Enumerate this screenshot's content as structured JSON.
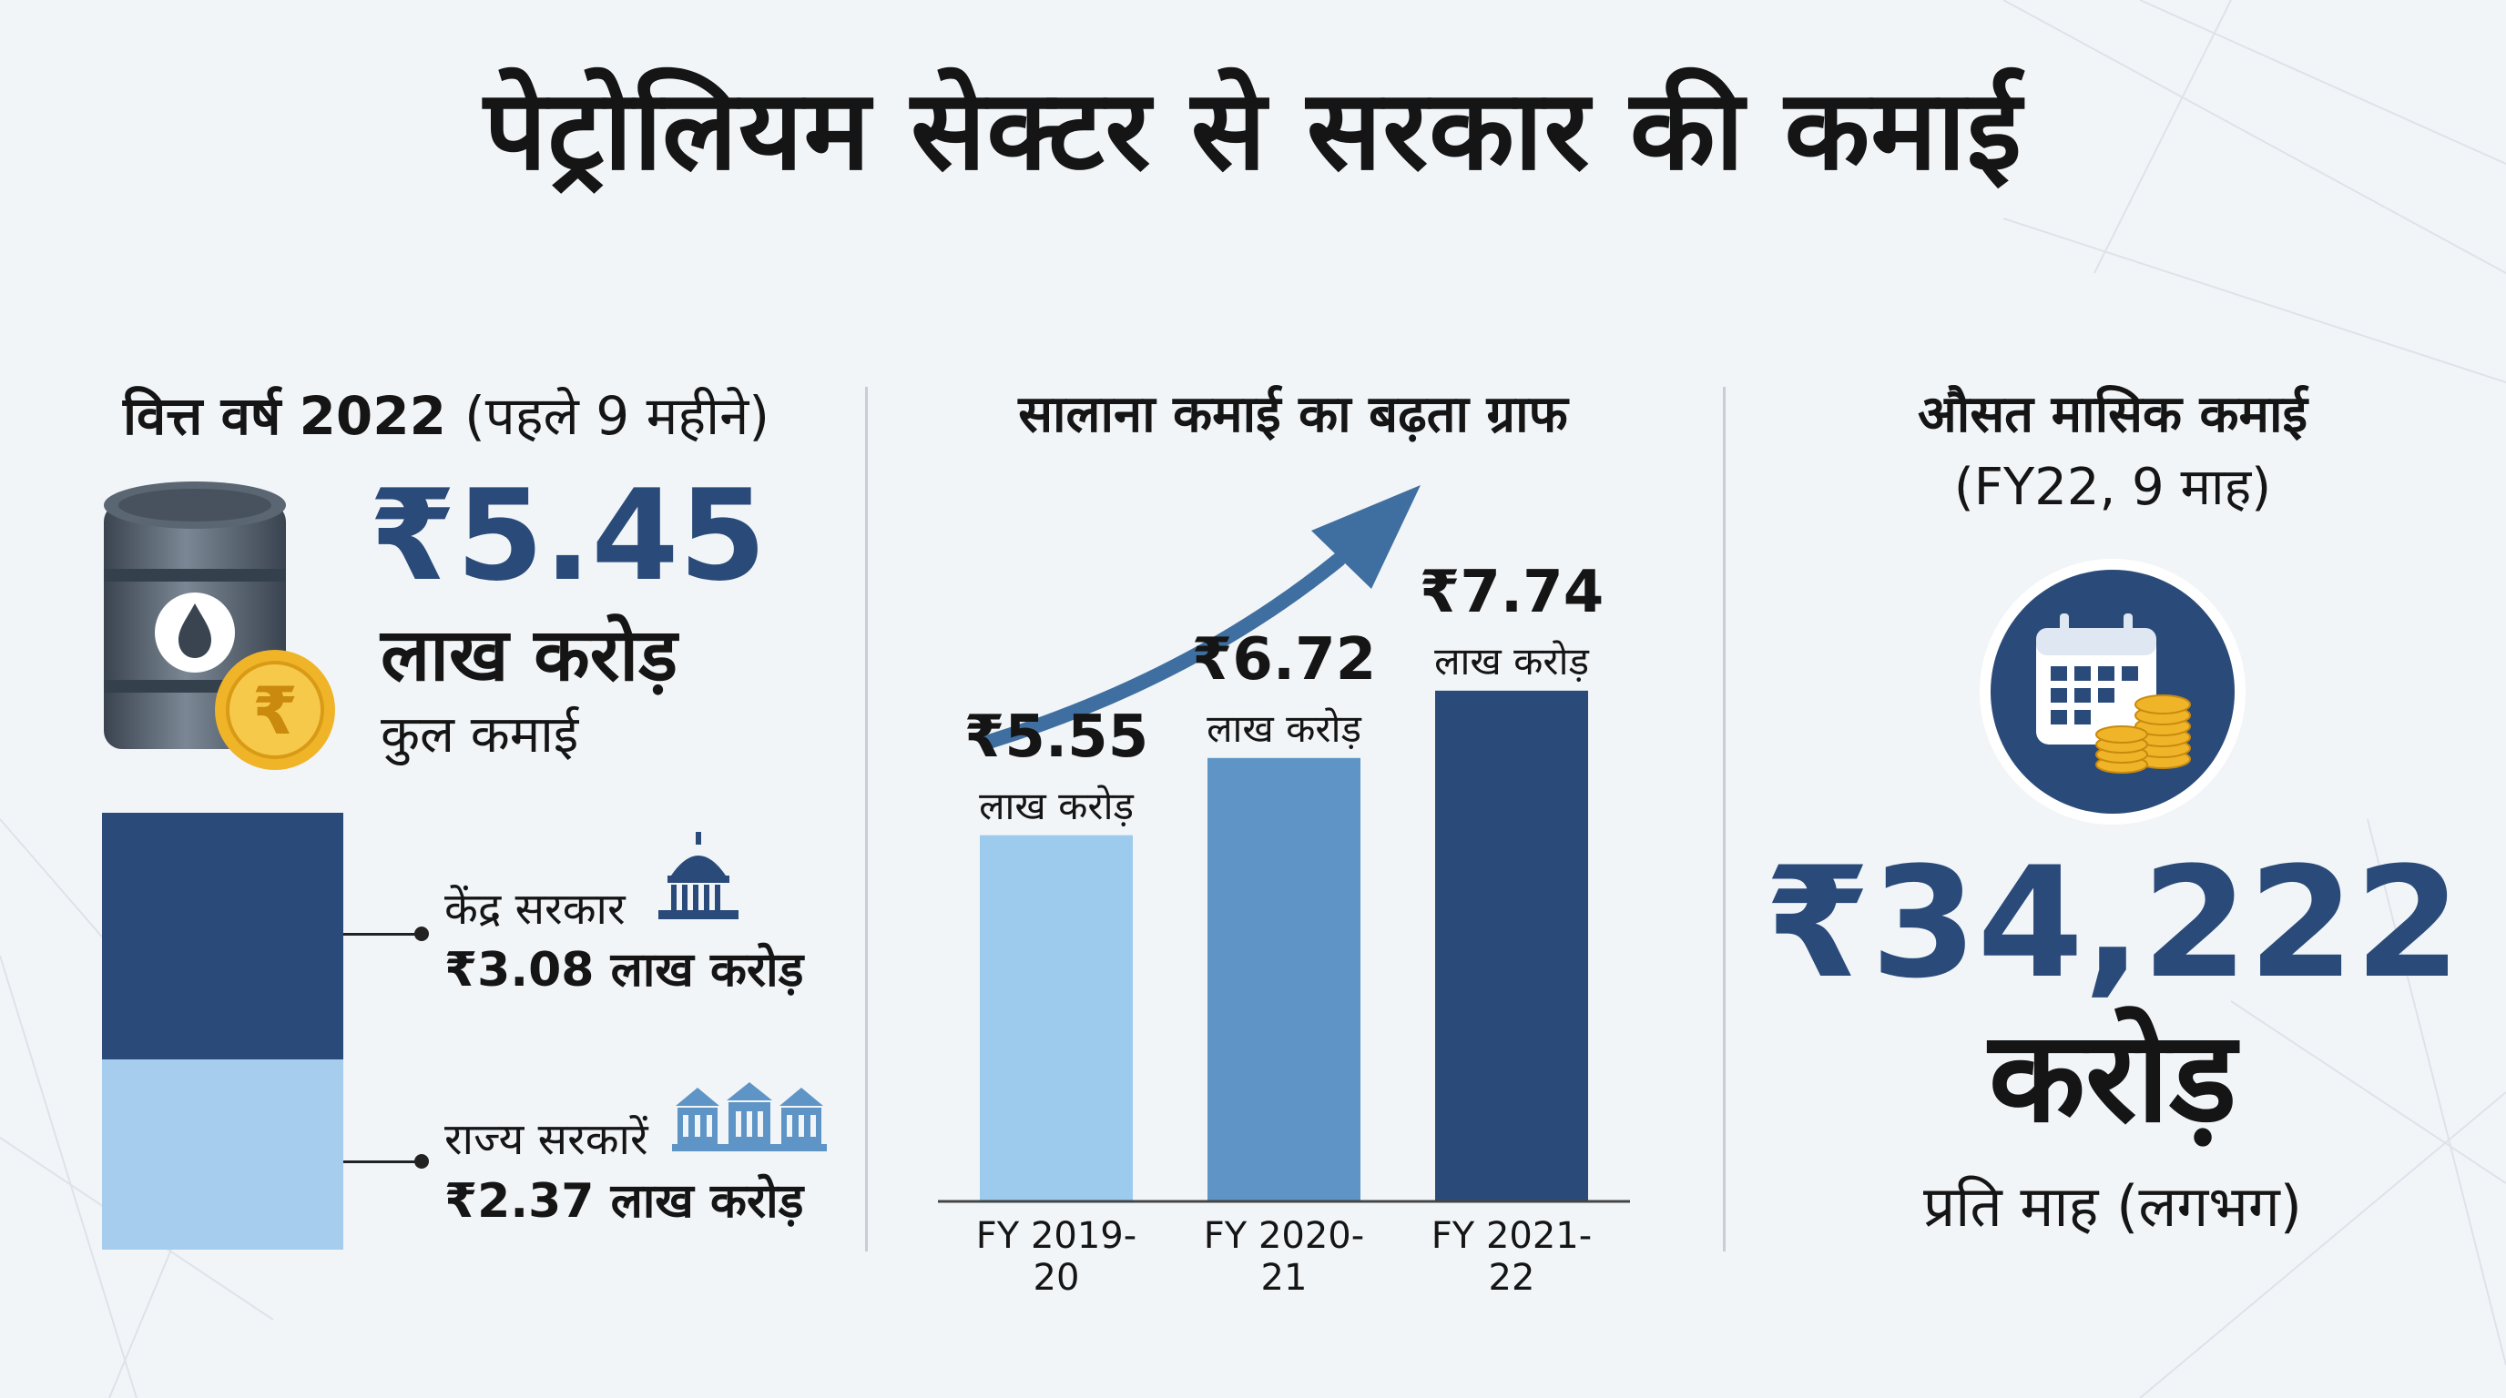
{
  "title": "पेट्रोलियम सेक्टर से सरकार की कमाई",
  "left": {
    "heading_bold": "वित्त वर्ष 2022",
    "heading_light": "(पहले 9 महीने)",
    "total_value": "₹5.45",
    "total_unit": "लाख करोड़",
    "total_caption": "कुल कमाई",
    "barrel_icon": "oil-barrel-icon",
    "coin_icon": "rupee-coin-icon",
    "coin_symbol": "₹",
    "split": [
      {
        "name": "केंद्र सरकार",
        "value": "₹3.08 लाख करोड़",
        "amount": 3.08,
        "color": "#2a4b7a",
        "icon": "parliament-icon"
      },
      {
        "name": "राज्य सरकारें",
        "value": "₹2.37 लाख करोड़",
        "amount": 2.37,
        "color": "#a6cdee",
        "icon": "state-buildings-icon"
      }
    ]
  },
  "middle": {
    "heading": "सालाना कमाई का बढ़ता ग्राफ",
    "arrow_icon": "trend-arrow-icon"
  },
  "chart_data": {
    "type": "bar",
    "title": "सालाना कमाई का बढ़ता ग्राफ",
    "categories": [
      "FY 2019-20",
      "FY 2020-21",
      "FY 2021-22"
    ],
    "values": [
      5.55,
      6.72,
      7.74
    ],
    "value_labels": [
      "₹5.55",
      "₹6.72",
      "₹7.74"
    ],
    "unit_label": "लाख करोड़",
    "colors": [
      "#9ccbed",
      "#5e95c6",
      "#2a4b7a"
    ],
    "ylim": [
      0,
      8
    ],
    "xlabel": "",
    "ylabel": "",
    "grid": false
  },
  "right": {
    "heading": "औसत मासिक कमाई",
    "subheading": "(FY22, 9 माह)",
    "icon": "calendar-coins-icon",
    "value": "₹34,222",
    "unit": "करोड़",
    "caption": "प्रति माह (लगभग)"
  },
  "colors": {
    "navy": "#2a4b7a",
    "light_blue": "#a6cdee",
    "gold": "#f0b429"
  }
}
